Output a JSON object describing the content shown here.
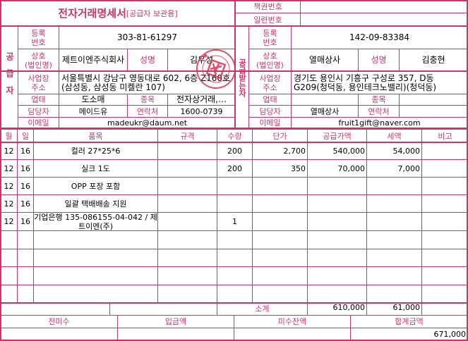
{
  "title": "전자거래명세서",
  "title_sub": "[공급자 보관용]",
  "header_right": {
    "book_no_label": "책권번호",
    "book_no": "",
    "serial_label": "일련번호",
    "serial": ""
  },
  "supplier": {
    "side_label": "공급자",
    "reg_label": "등록\n번호",
    "reg_no": "303-81-61297",
    "name_label": "상호\n(법인명)",
    "name": "제트이엔주식회사",
    "rep_label": "성명",
    "rep": "김우성",
    "addr_label": "사업장\n주소",
    "addr": "서울특별시 강남구 영동대로 602, 6층 Z160호 (삼성동, 삼성동 미켈란 107)",
    "biz_type_label": "업태",
    "biz_type": "도소매",
    "biz_item_label": "종목",
    "biz_item": "전자상거래,…",
    "contact_label": "담당자",
    "contact": "메이드유",
    "phone_label": "연락처",
    "phone": "1600-0739",
    "email_label": "이메일",
    "email": "madeukr@daum.net"
  },
  "recipient": {
    "side_label": "공급받는자",
    "reg_label": "등록\n번호",
    "reg_no": "142-09-83384",
    "name_label": "상호\n(법인명)",
    "name": "열매상사",
    "rep_label": "성명",
    "rep": "김충현",
    "addr_label": "사업장\n주소",
    "addr": "경기도 용인시 기흥구 구성로 357, D동 G209(청덕동, 용인테크노밸리)(청덕동)",
    "biz_type_label": "업태",
    "biz_type": "",
    "biz_item_label": "종목",
    "biz_item": "",
    "contact_label": "담당자",
    "contact": "열매상사",
    "phone_label": "연락처",
    "phone": "",
    "email_label": "이메일",
    "email": "fruit1gift@naver.com"
  },
  "items_header": [
    "월",
    "일",
    "품목",
    "규격",
    "수량",
    "단가",
    "공급가액",
    "세액",
    "비고"
  ],
  "items": [
    [
      "12",
      "16",
      "컬러 27*25*6",
      "",
      "200",
      "2,700",
      "540,000",
      "54,000",
      ""
    ],
    [
      "12",
      "16",
      "실크 1도",
      "",
      "200",
      "350",
      "70,000",
      "7,000",
      ""
    ],
    [
      "12",
      "16",
      "OPP 포장 포함",
      "",
      "",
      "",
      "",
      "",
      ""
    ],
    [
      "12",
      "16",
      "일괄 택배배송 지원",
      "",
      "",
      "",
      "",
      "",
      ""
    ],
    [
      "12",
      "16",
      "기업은행 135-086155-04-042 / 제트이엔(주)",
      "",
      "1",
      "",
      "",
      "",
      ""
    ],
    [
      "",
      "",
      "",
      "",
      "",
      "",
      "",
      "",
      ""
    ],
    [
      "",
      "",
      "",
      "",
      "",
      "",
      "",
      "",
      ""
    ],
    [
      "",
      "",
      "",
      "",
      "",
      "",
      "",
      "",
      ""
    ],
    [
      "",
      "",
      "",
      "",
      "",
      "",
      "",
      "",
      ""
    ]
  ],
  "subtotal": {
    "label": "소계",
    "supply": "610,000",
    "tax": "61,000"
  },
  "totals": {
    "prev_label": "전미수",
    "prev": "",
    "paid_label": "입금액",
    "paid": "",
    "balance_label": "미수잔액",
    "balance": "",
    "total_label": "합계금액",
    "total": "671,000"
  },
  "stamp_text": "제트이엔주식회사",
  "colors": {
    "border": "#cc3366",
    "label": "#cc3366"
  }
}
